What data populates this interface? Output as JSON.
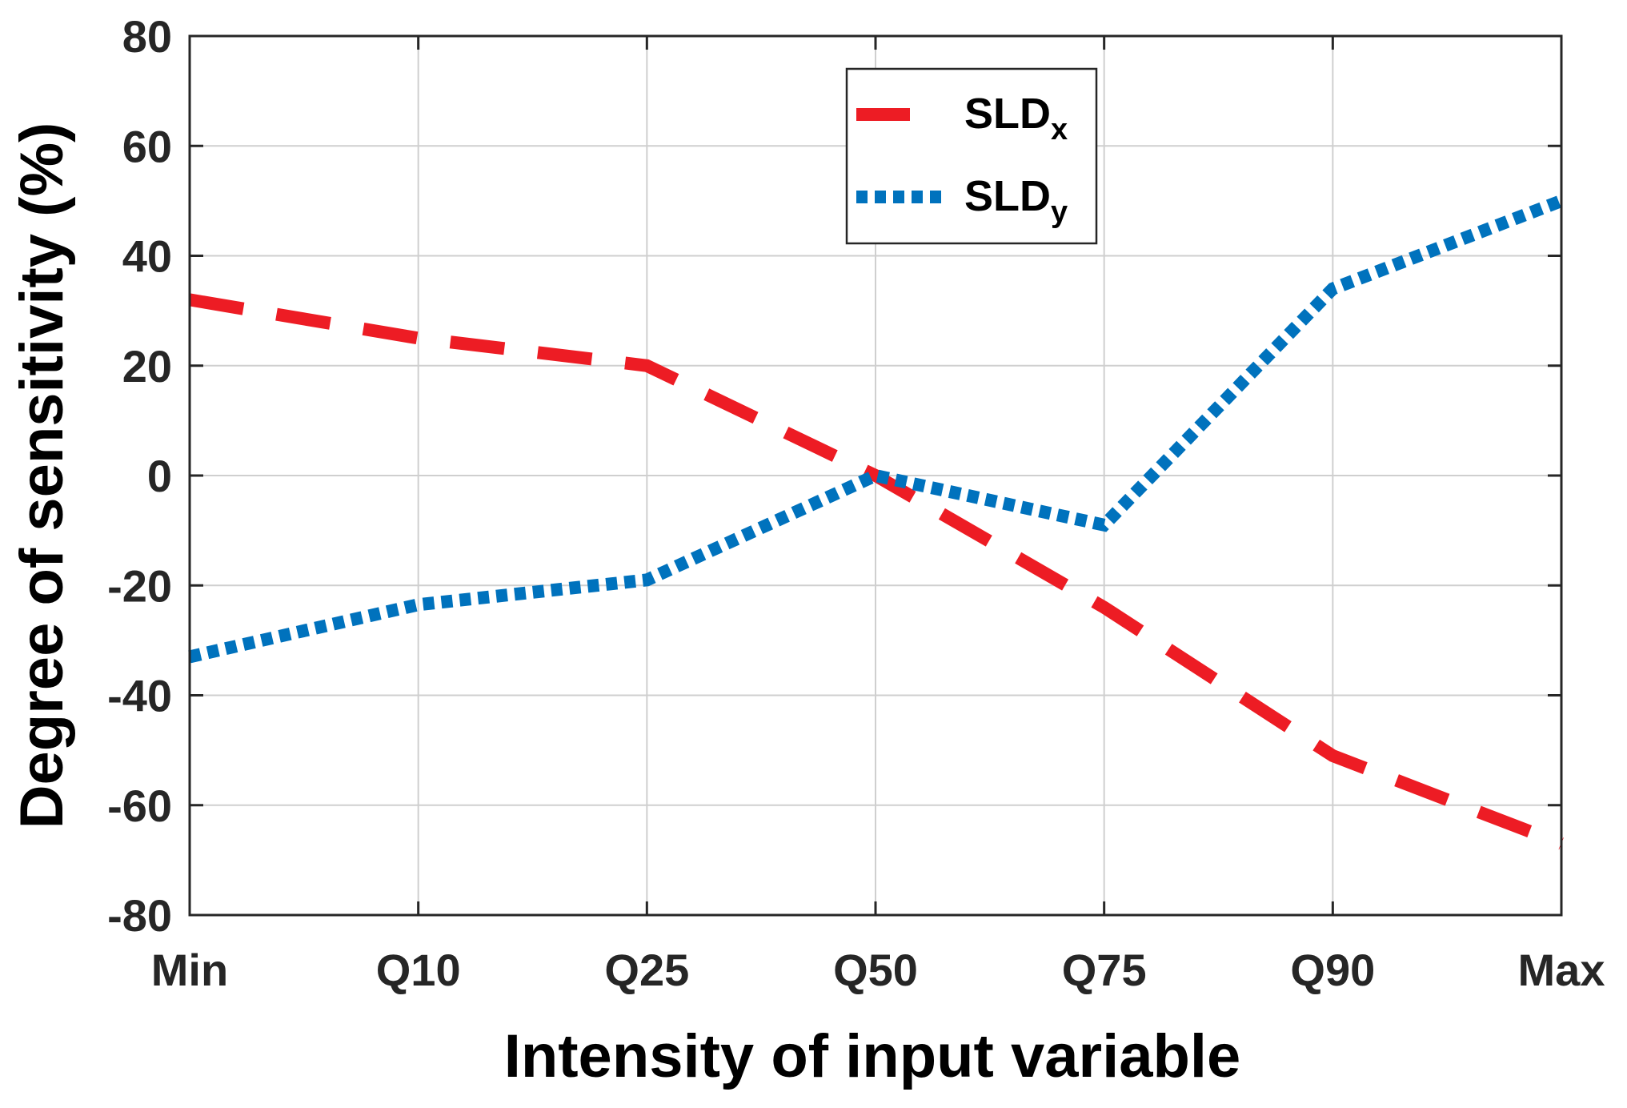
{
  "chart_data": {
    "type": "line",
    "title": "",
    "xlabel": "Intensity of input variable",
    "ylabel": "Degree of sensitivity (%)",
    "categories": [
      "Min",
      "Q10",
      "Q25",
      "Q50",
      "Q75",
      "Q90",
      "Max"
    ],
    "ylim": [
      -80,
      80
    ],
    "yticks": [
      -80,
      -60,
      -40,
      -20,
      0,
      20,
      40,
      60,
      80
    ],
    "ytick_labels": [
      "-80",
      "-60",
      "-40",
      "-20",
      "0",
      "20",
      "40",
      "60",
      "80"
    ],
    "grid": true,
    "legend_position": "top-center",
    "series": [
      {
        "name": "SLDx",
        "label_main": "SLD",
        "label_sub": "x",
        "color": "#ED1C24",
        "line_style": "dashed",
        "values": [
          32,
          25,
          20,
          0,
          -24,
          -51,
          -67
        ]
      },
      {
        "name": "SLDy",
        "label_main": "SLD",
        "label_sub": "y",
        "color": "#0072BD",
        "line_style": "dotted",
        "values": [
          -33,
          -23.5,
          -19,
          0,
          -9,
          34,
          50
        ]
      }
    ]
  }
}
